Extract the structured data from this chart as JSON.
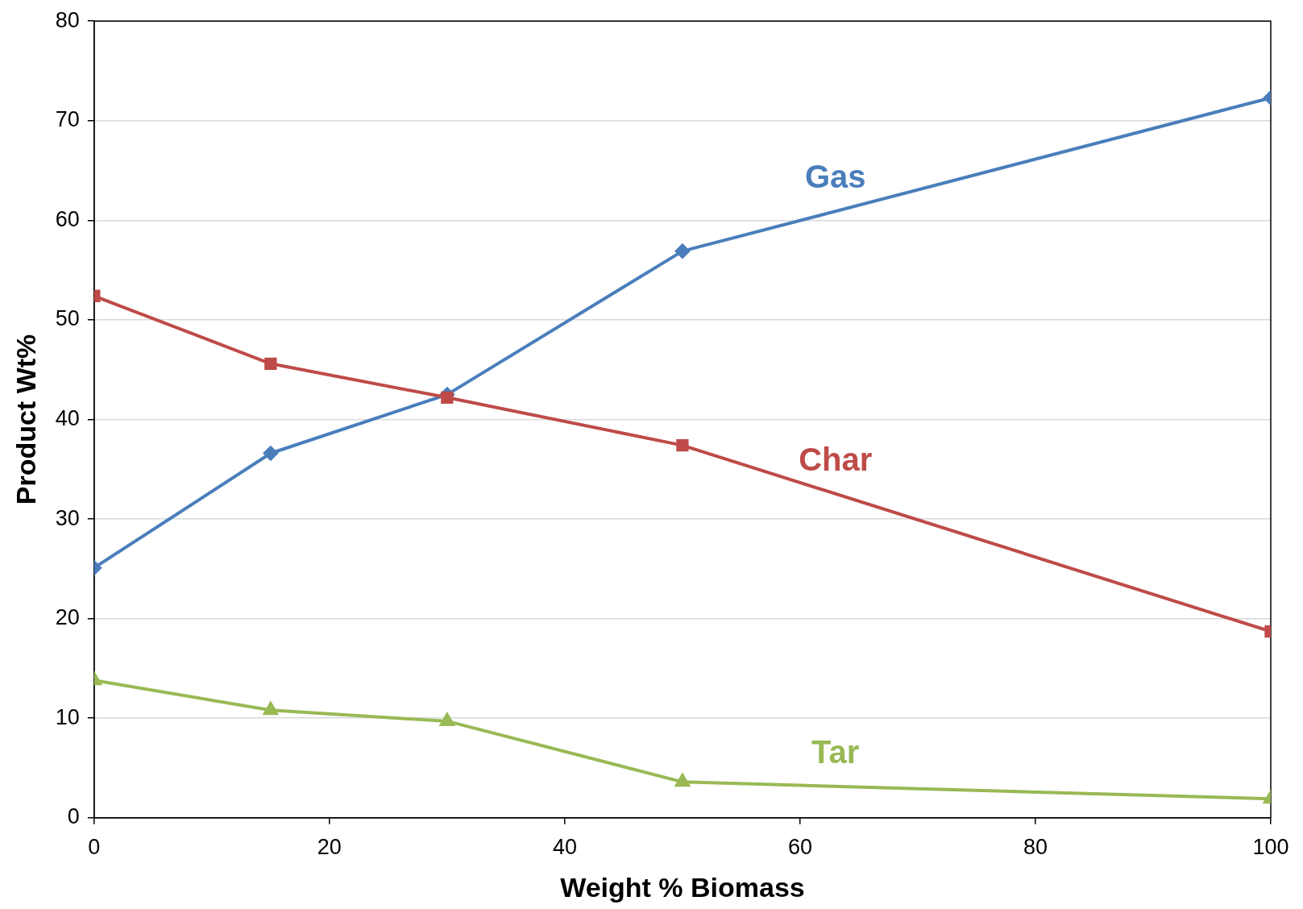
{
  "chart_data": {
    "type": "line",
    "xlabel": "Weight % Biomass",
    "ylabel": "Product Wt%",
    "x": [
      0,
      15,
      30,
      50,
      100
    ],
    "series": [
      {
        "name": "Gas",
        "color": "#4a7ebb",
        "marker": "diamond",
        "values": [
          25.1,
          36.6,
          42.5,
          56.9,
          72.3
        ]
      },
      {
        "name": "Char",
        "color": "#be4b48",
        "marker": "square",
        "values": [
          52.4,
          45.6,
          42.2,
          37.4,
          18.7
        ]
      },
      {
        "name": "Tar",
        "color": "#98b954",
        "marker": "triangle",
        "values": [
          13.8,
          10.8,
          9.7,
          3.6,
          1.9
        ]
      }
    ],
    "xlim": [
      0,
      100
    ],
    "xticks": [
      0,
      20,
      40,
      60,
      80,
      100
    ],
    "ylim": [
      0,
      80
    ],
    "yticks": [
      0,
      10,
      20,
      30,
      40,
      50,
      60,
      70,
      80
    ],
    "grid": "y",
    "legend": false,
    "line_style": "solid"
  }
}
